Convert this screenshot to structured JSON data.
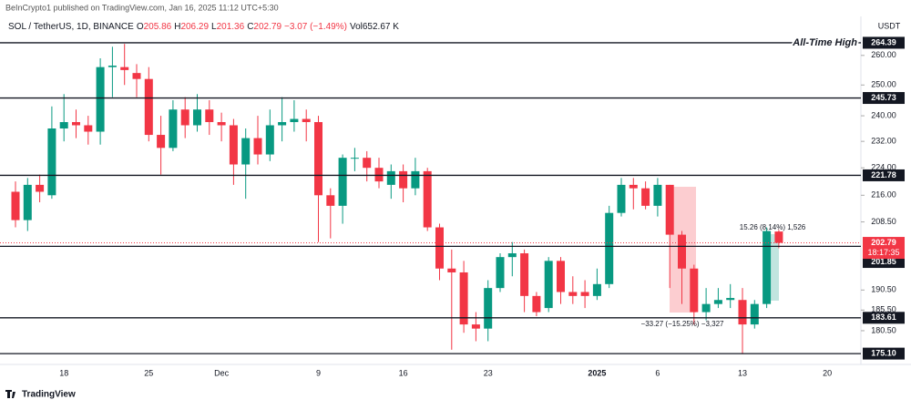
{
  "header": {
    "publisher": "BeInCrypto1 published on TradingView.com, Jan 16, 2025 11:12 UTC+5:30",
    "symbol": "SOL / TetherUS, 1D, BINANCE",
    "ohlc_prefixes": [
      "O",
      "H",
      "L",
      "C"
    ],
    "change": "−3.07 (−1.49%)",
    "volume": "Vol652.67 K"
  },
  "footer": {
    "logo": "TradingView"
  },
  "chart_data": {
    "type": "candlestick",
    "currency": "USDT",
    "log_scale": true,
    "up_color": "#089981",
    "down_color": "#f23645",
    "categories": [
      null,
      null,
      null,
      null,
      "18",
      null,
      null,
      null,
      null,
      null,
      null,
      "25",
      null,
      null,
      null,
      null,
      null,
      "Dec",
      null,
      null,
      null,
      null,
      null,
      null,
      null,
      "9",
      null,
      null,
      null,
      null,
      null,
      null,
      "16",
      null,
      null,
      null,
      null,
      null,
      null,
      "23",
      null,
      null,
      null,
      null,
      null,
      null,
      null,
      null,
      "2025",
      null,
      null,
      null,
      null,
      "6",
      null,
      null,
      null,
      null,
      null,
      null,
      "13",
      null,
      null,
      null,
      null,
      null,
      null,
      "20"
    ],
    "open": [
      217,
      209,
      219,
      216,
      236,
      238,
      237,
      235,
      256,
      256,
      254,
      252,
      234,
      230,
      242,
      237,
      242,
      238,
      237,
      225,
      233,
      228,
      237,
      238,
      239,
      238,
      216,
      213,
      227,
      227,
      224,
      219,
      223,
      218,
      223,
      207,
      196,
      195,
      182,
      181,
      191,
      199,
      200,
      189,
      186,
      198,
      190,
      190,
      189,
      192,
      211,
      219,
      218,
      213,
      219,
      205,
      196,
      185,
      187,
      188,
      188,
      182,
      187,
      205.86,
      null,
      null,
      null,
      null
    ],
    "high": [
      220,
      221,
      222,
      243,
      247,
      242,
      240,
      259,
      263,
      264,
      257,
      256,
      240,
      245,
      246,
      247,
      245,
      241,
      239,
      236,
      240,
      242,
      246,
      245,
      242,
      240,
      218,
      228,
      230,
      229,
      227,
      225,
      225,
      227,
      224,
      208,
      201,
      198,
      185,
      193,
      200,
      203,
      201,
      190,
      199,
      199,
      194,
      193,
      196,
      213,
      221,
      221,
      220,
      221,
      219,
      206,
      197,
      191,
      191,
      192,
      191,
      188,
      207,
      206.29,
      null,
      null,
      null,
      null
    ],
    "low": [
      207,
      206,
      214,
      215,
      232,
      233,
      231,
      231,
      246,
      250,
      246,
      232,
      222,
      229,
      233,
      235,
      234,
      232,
      219,
      215,
      225,
      226,
      232,
      235,
      232,
      203,
      204,
      208,
      223,
      220,
      218,
      215,
      214,
      216,
      206,
      193,
      176,
      180,
      178,
      178,
      190,
      194,
      185,
      184,
      185,
      187,
      187,
      186,
      188,
      191,
      210,
      212,
      212,
      210,
      191,
      187,
      182,
      183,
      186,
      186,
      175,
      181,
      186,
      201.36,
      null,
      null,
      null,
      null
    ],
    "close": [
      209,
      219,
      217,
      236,
      238,
      237,
      235,
      256,
      256.5,
      255,
      252,
      234,
      230,
      242,
      237,
      242,
      238,
      237,
      225,
      233,
      228,
      237,
      238,
      239,
      238,
      216,
      213,
      227,
      227,
      224,
      220,
      223,
      218,
      223,
      207,
      196,
      195,
      182,
      181,
      191,
      199,
      200,
      189,
      185,
      198,
      190,
      189,
      189,
      192,
      211,
      219,
      218,
      213,
      219,
      205,
      196,
      185,
      187,
      188,
      188.5,
      182,
      187,
      206,
      202.79,
      null,
      null,
      null,
      null
    ],
    "countdown": "18:17:35",
    "ylim": [
      172.6,
      273.8
    ],
    "yticks": [
      {
        "value": 260,
        "label": "260.00"
      },
      {
        "value": 250,
        "label": "250.00"
      },
      {
        "value": 240,
        "label": "240.00"
      },
      {
        "value": 232,
        "label": "232.00"
      },
      {
        "value": 224,
        "label": "224.00"
      },
      {
        "value": 216,
        "label": "216.00"
      },
      {
        "value": 208.5,
        "label": "208.50"
      },
      {
        "value": 190.5,
        "label": "190.50"
      },
      {
        "value": 185.5,
        "label": "185.50"
      },
      {
        "value": 180.5,
        "label": "180.50"
      }
    ],
    "levels": [
      264.39,
      245.73,
      221.78,
      201.85,
      183.61,
      {
        "value": 175.1,
        "label": "175.10"
      }
    ],
    "annotations": {
      "ath": "All-Time High",
      "rise": "15.26 (8.14%) 1,526",
      "drop": "−33.27 (−15.25%) −3,327"
    }
  }
}
